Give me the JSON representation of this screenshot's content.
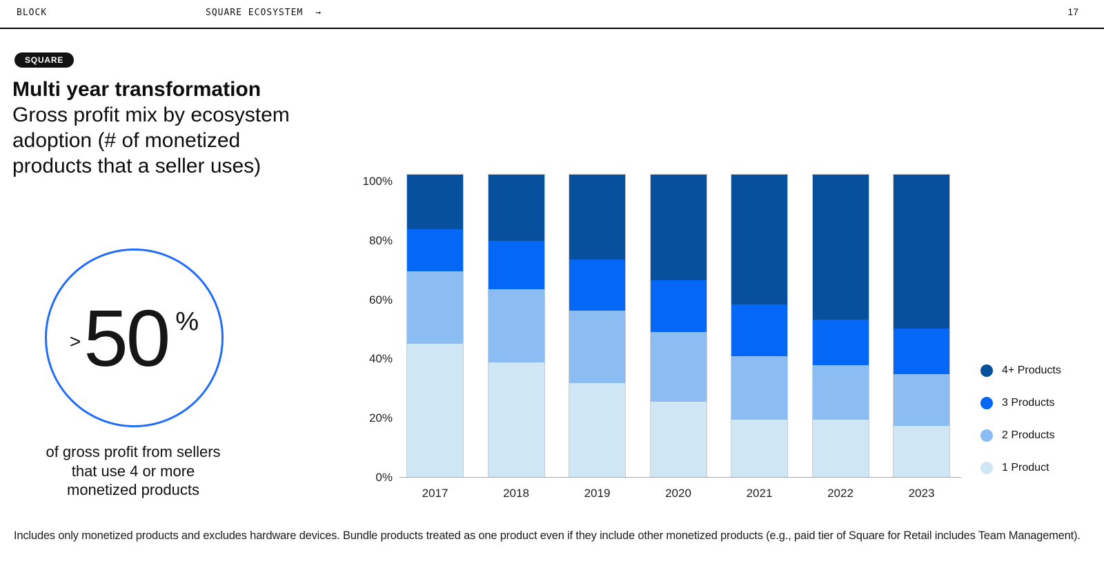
{
  "header": {
    "brand": "BLOCK",
    "section": "SQUARE ECOSYSTEM",
    "arrow": "→",
    "page_number": "17"
  },
  "badge": "SQUARE",
  "title": "Multi year transformation",
  "subtitle_lines": [
    "Gross profit mix by ecosystem",
    "adoption (# of monetized",
    "products that a seller uses)"
  ],
  "stat": {
    "prefix": ">",
    "value": "50",
    "suffix": "%",
    "caption_lines": [
      "of gross profit from sellers",
      "that use 4 or more",
      "monetized products"
    ],
    "ring_color": "#1F6BFA"
  },
  "chart_data": {
    "type": "bar",
    "stacked": true,
    "title": "Gross profit mix by ecosystem adoption (# of monetized products that a seller uses)",
    "categories": [
      "2017",
      "2018",
      "2019",
      "2020",
      "2021",
      "2022",
      "2023"
    ],
    "series": [
      {
        "name": "1 Product",
        "color": "#CFE7F5",
        "values": [
          44,
          38,
          31,
          25,
          19,
          19,
          17
        ]
      },
      {
        "name": "2 Products",
        "color": "#8CBDF2",
        "values": [
          24,
          24,
          24,
          23,
          21,
          18,
          17
        ]
      },
      {
        "name": "3 Products",
        "color": "#0567F5",
        "values": [
          14,
          16,
          17,
          17,
          17,
          15,
          15
        ]
      },
      {
        "name": "4+ Products",
        "color": "#07509E",
        "values": [
          18,
          22,
          28,
          35,
          43,
          48,
          51
        ]
      }
    ],
    "xlabel": "",
    "ylabel": "",
    "ylim": [
      0,
      100
    ],
    "y_tick_values": [
      0,
      20,
      40,
      60,
      80,
      100
    ],
    "y_tick_labels": [
      "0%",
      "20%",
      "40%",
      "60%",
      "80%",
      "100%"
    ],
    "grid": false,
    "legend_position": "right",
    "legend_order": [
      "4+ Products",
      "3 Products",
      "2 Products",
      "1 Product"
    ]
  },
  "footnote": "Includes only monetized products and excludes hardware devices. Bundle products treated as one product even if they include other monetized products (e.g., paid tier of Square for Retail includes Team Management)."
}
